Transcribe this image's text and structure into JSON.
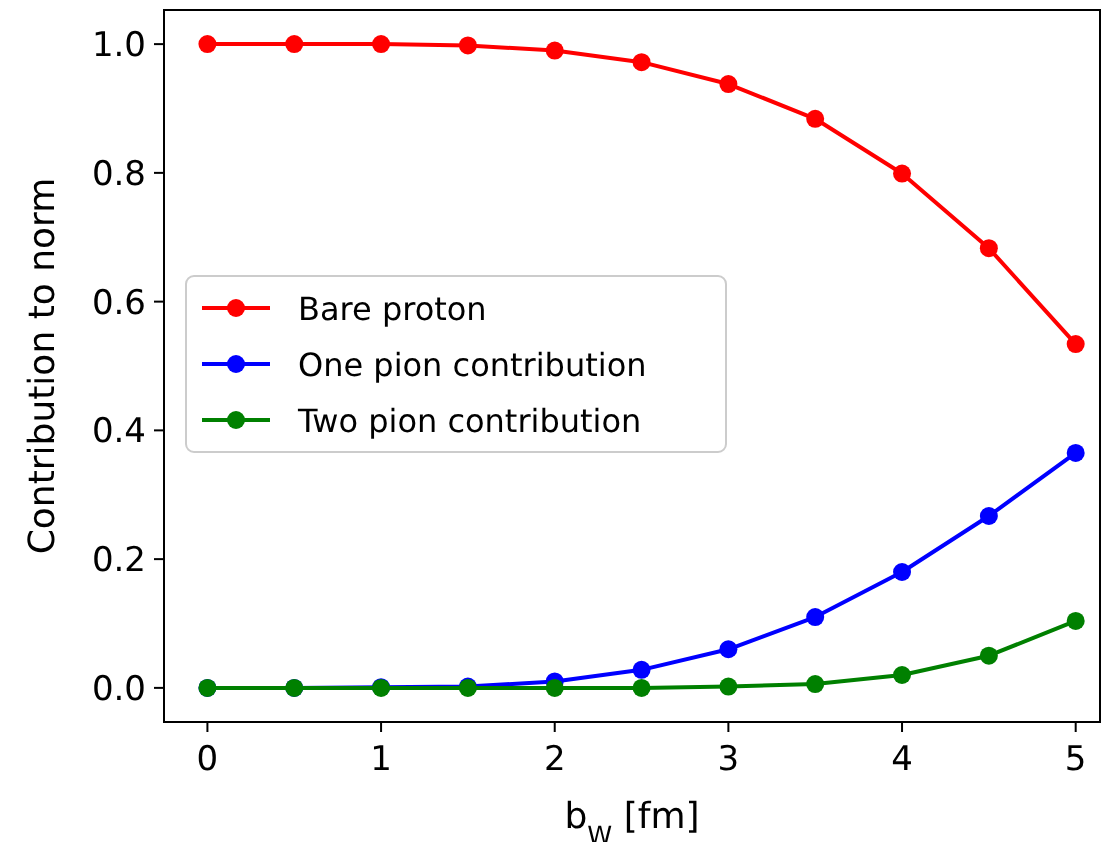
{
  "chart_data": {
    "type": "line",
    "xlabel": "b$_{W}$ [fm]",
    "ylabel": "Contribution to norm",
    "x": [
      0,
      0.5,
      1,
      1.5,
      2,
      2.5,
      3,
      3.5,
      4,
      4.5,
      5
    ],
    "series": [
      {
        "name": "Bare proton",
        "color": "#ff0000",
        "values": [
          1.0,
          1.0,
          1.0,
          0.998,
          0.99,
          0.972,
          0.938,
          0.884,
          0.799,
          0.683,
          0.534
        ]
      },
      {
        "name": "One pion contribution",
        "color": "#0000ff",
        "values": [
          0,
          0,
          0.001,
          0.002,
          0.01,
          0.028,
          0.06,
          0.11,
          0.18,
          0.267,
          0.365
        ]
      },
      {
        "name": "Two pion contribution",
        "color": "#008000",
        "values": [
          0,
          0,
          0,
          0,
          0,
          0,
          0.002,
          0.006,
          0.02,
          0.05,
          0.104
        ]
      }
    ],
    "xlim": [
      -0.25,
      5.14
    ],
    "ylim": [
      -0.053,
      1.053
    ],
    "xticks": [
      0,
      1,
      2,
      3,
      4,
      5
    ],
    "yticks": [
      {
        "value": 0,
        "label": "0.0"
      },
      {
        "value": 0.2,
        "label": "0.2"
      },
      {
        "value": 0.4,
        "label": "0.4"
      },
      {
        "value": 0.6,
        "label": "0.6"
      },
      {
        "value": 0.8,
        "label": "0.8"
      },
      {
        "value": 1,
        "label": "1.0"
      }
    ],
    "grid": false,
    "legend": "left",
    "marker": "circle",
    "line_style": "solid"
  }
}
